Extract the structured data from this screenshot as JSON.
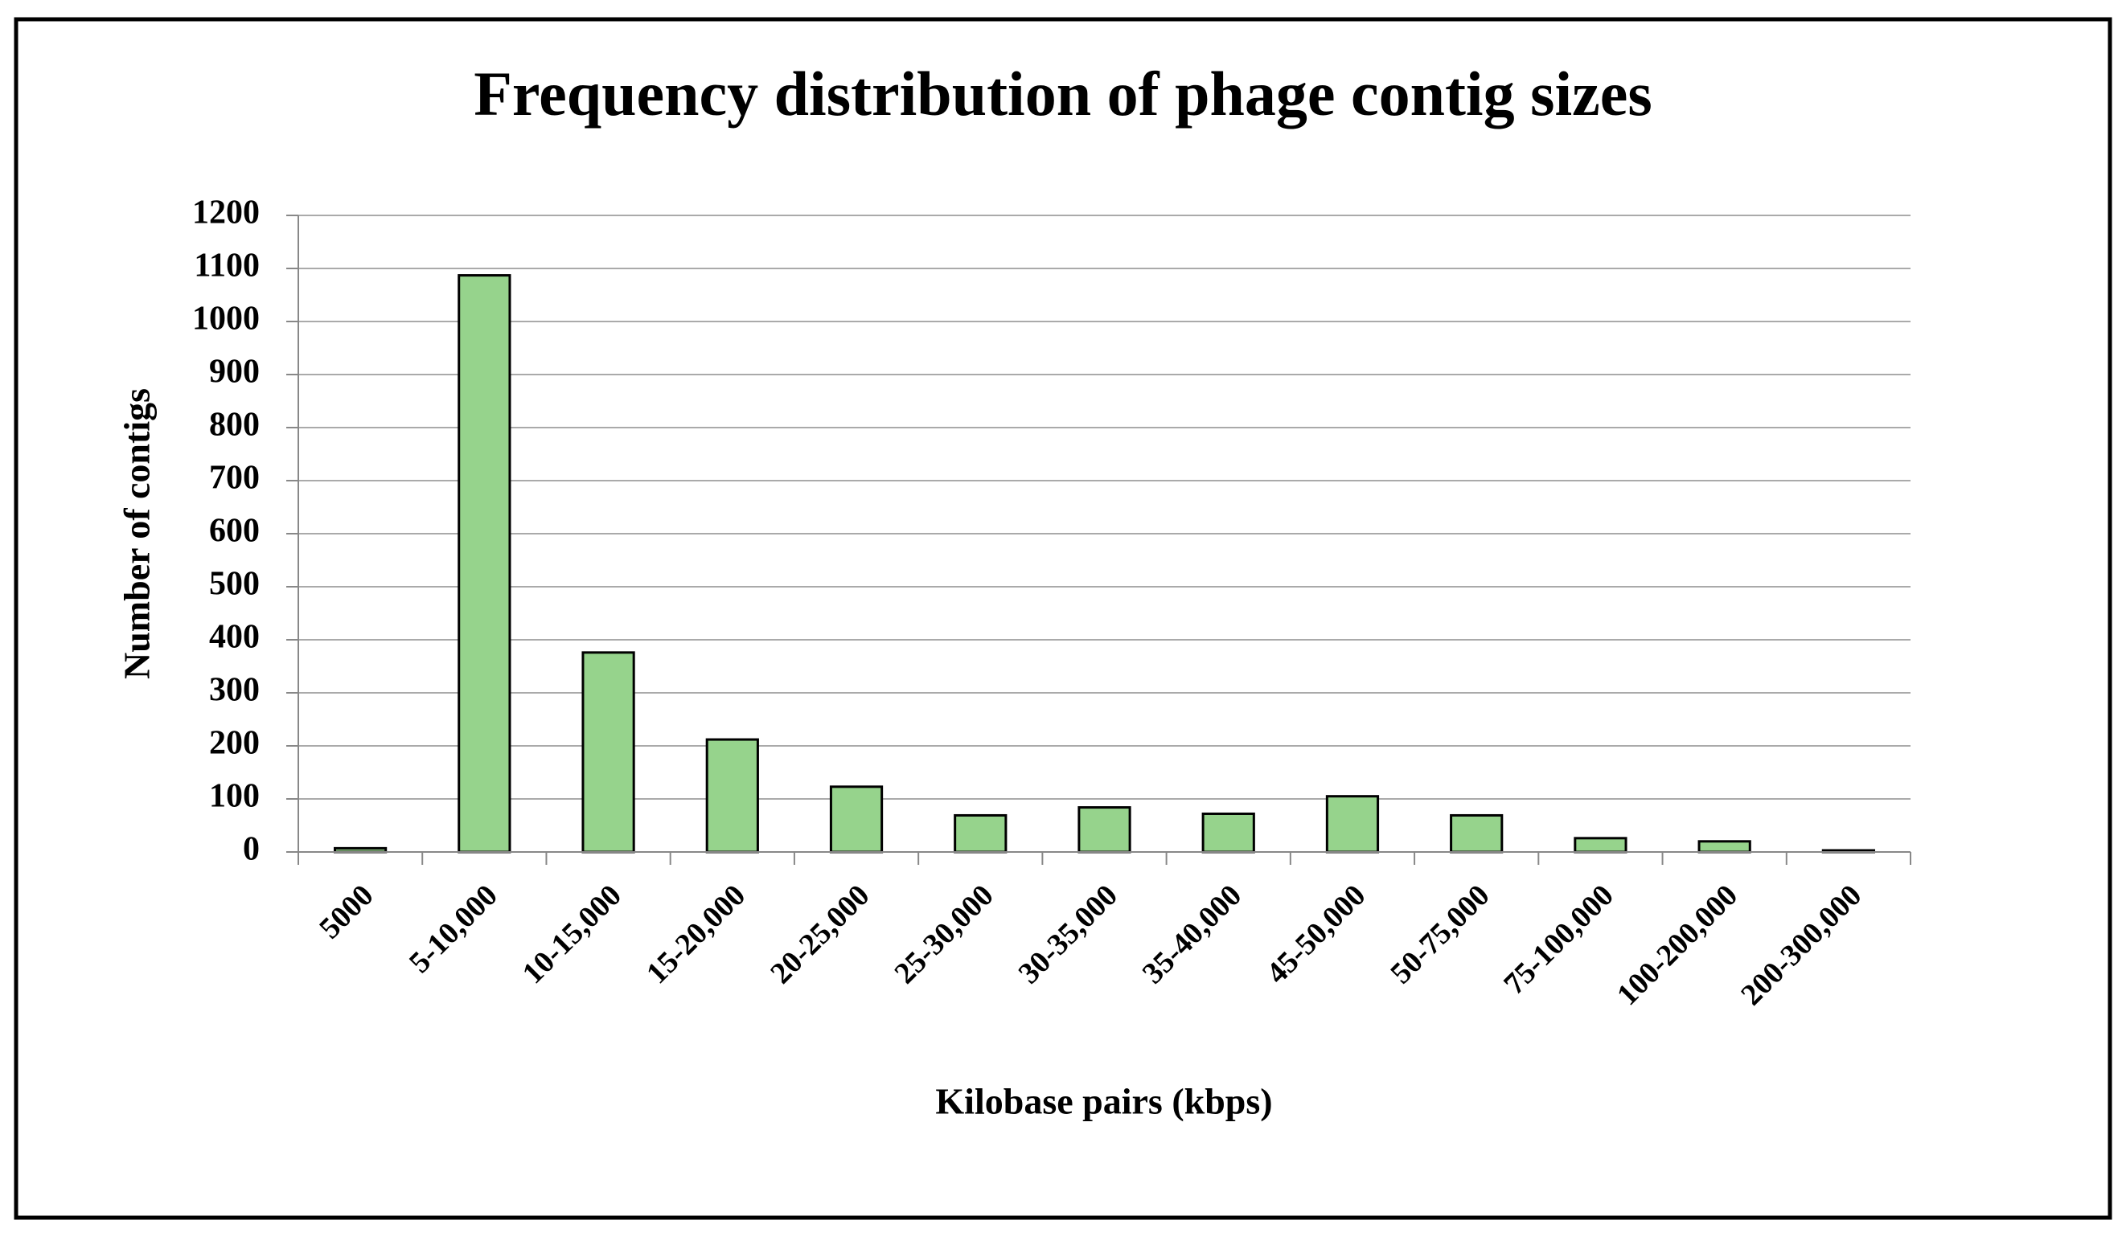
{
  "chart_data": {
    "type": "bar",
    "title": "Frequency distribution of phage contig sizes",
    "x_label": "Kilobase pairs (kbps)",
    "y_label": "Number of contigs",
    "categories": [
      "5000",
      "5-10,000",
      "10-15,000",
      "15-20,000",
      "20-25,000",
      "25-30,000",
      "30-35,000",
      "35-40,000",
      "45-50,000",
      "50-75,000",
      "75-100,000",
      "100-200,000",
      "200-300,000"
    ],
    "values": [
      7,
      1087,
      376,
      212,
      123,
      69,
      84,
      72,
      105,
      69,
      26,
      20,
      3
    ],
    "color": "#96d38c",
    "ylim": [
      0,
      1200
    ],
    "yticks": [
      0,
      100,
      200,
      300,
      400,
      500,
      600,
      700,
      800,
      900,
      1000,
      1100,
      1200
    ],
    "grid": true
  }
}
